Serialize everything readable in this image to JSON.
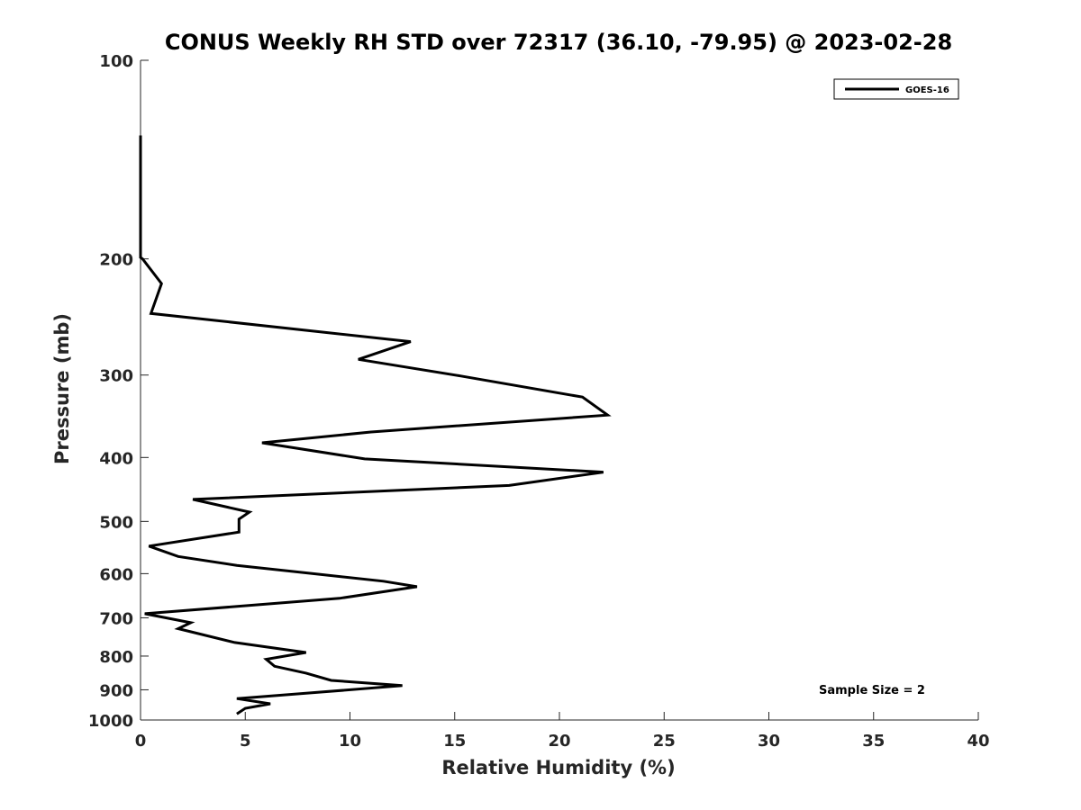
{
  "chart_data": {
    "type": "line",
    "title": "CONUS Weekly RH STD over 72317 (36.10, -79.95) @ 2023-02-28",
    "xlabel": "Relative Humidity (%)",
    "ylabel": "Pressure (mb)",
    "xlim": [
      0,
      40
    ],
    "ylim": [
      100,
      1000
    ],
    "y_scale": "log",
    "y_reversed": true,
    "grid": false,
    "legend_position": "top-right",
    "annotation": "Sample Size = 2",
    "x_ticks": [
      "0",
      "5",
      "10",
      "15",
      "20",
      "25",
      "30",
      "35",
      "40"
    ],
    "x_tick_values": [
      0,
      5,
      10,
      15,
      20,
      25,
      30,
      35,
      40
    ],
    "y_ticks": [
      "100",
      "200",
      "300",
      "400",
      "500",
      "600",
      "700",
      "800",
      "900",
      "1000"
    ],
    "y_tick_values": [
      100,
      200,
      300,
      400,
      500,
      600,
      700,
      800,
      900,
      1000
    ],
    "series": [
      {
        "name": "GOES-16",
        "color": "#000000",
        "points": [
          [
            0.0,
            130
          ],
          [
            0.0,
            199
          ],
          [
            0.1,
            200
          ],
          [
            1.0,
            218
          ],
          [
            0.5,
            242
          ],
          [
            12.9,
            267
          ],
          [
            10.4,
            284
          ],
          [
            15.3,
            301
          ],
          [
            21.1,
            324
          ],
          [
            22.3,
            345
          ],
          [
            11.0,
            366
          ],
          [
            5.8,
            380
          ],
          [
            10.7,
            402
          ],
          [
            22.1,
            421
          ],
          [
            17.6,
            441
          ],
          [
            2.5,
            463
          ],
          [
            5.2,
            484
          ],
          [
            4.7,
            496
          ],
          [
            4.7,
            519
          ],
          [
            0.4,
            545
          ],
          [
            1.8,
            565
          ],
          [
            4.6,
            583
          ],
          [
            11.6,
            616
          ],
          [
            13.2,
            628
          ],
          [
            9.5,
            654
          ],
          [
            0.2,
            690
          ],
          [
            2.4,
            712
          ],
          [
            1.8,
            727
          ],
          [
            4.5,
            763
          ],
          [
            7.9,
            790
          ],
          [
            6.0,
            809
          ],
          [
            6.4,
            829
          ],
          [
            7.9,
            849
          ],
          [
            9.1,
            871
          ],
          [
            12.5,
            887
          ],
          [
            7.9,
            911
          ],
          [
            4.6,
            928
          ],
          [
            6.2,
            945
          ],
          [
            5.0,
            960
          ],
          [
            4.6,
            979
          ]
        ]
      }
    ]
  }
}
